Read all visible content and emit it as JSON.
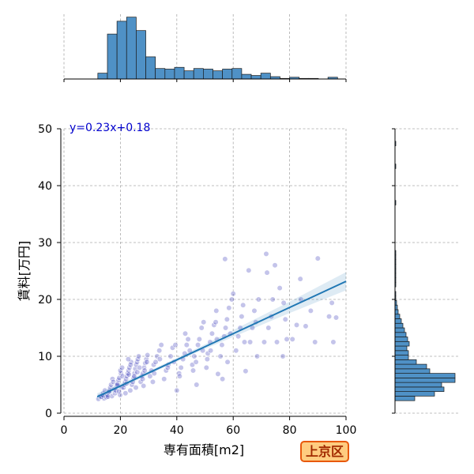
{
  "badge": {
    "label": "上京区",
    "bg_color": "#ffcc80",
    "border_color": "#e8590c",
    "text_color": "#a12a00"
  },
  "chart_data": {
    "type": "scatter",
    "title": "",
    "xlabel": "専有面積[m2]",
    "ylabel": "賃料[万円]",
    "xlim": [
      0,
      100
    ],
    "ylim": [
      0,
      50
    ],
    "xticks": [
      0,
      20,
      40,
      60,
      80,
      100
    ],
    "yticks": [
      0,
      10,
      20,
      30,
      40,
      50
    ],
    "grid": true,
    "point_color": "#2b2bb3",
    "points": [
      [
        12.2,
        2.5
      ],
      [
        12.8,
        3.0
      ],
      [
        13.1,
        2.8
      ],
      [
        13.5,
        3.2
      ],
      [
        13.9,
        3.5
      ],
      [
        14.2,
        2.6
      ],
      [
        14.5,
        4.0
      ],
      [
        14.8,
        3.3
      ],
      [
        13.3,
        2.9
      ],
      [
        14.0,
        3.1
      ],
      [
        15.1,
        2.8
      ],
      [
        15.4,
        3.2
      ],
      [
        15.8,
        3.6
      ],
      [
        16.1,
        4.0
      ],
      [
        16.4,
        4.5
      ],
      [
        16.7,
        5.0
      ],
      [
        17.0,
        3.0
      ],
      [
        17.2,
        6.0
      ],
      [
        17.5,
        5.5
      ],
      [
        17.8,
        4.2
      ],
      [
        16.0,
        3.8
      ],
      [
        15.6,
        2.9
      ],
      [
        18.1,
        3.5
      ],
      [
        18.4,
        4.0
      ],
      [
        18.7,
        4.8
      ],
      [
        19.0,
        5.2
      ],
      [
        19.3,
        5.8
      ],
      [
        19.6,
        6.2
      ],
      [
        19.9,
        3.2
      ],
      [
        20.2,
        7.0
      ],
      [
        20.5,
        4.5
      ],
      [
        20.8,
        6.5
      ],
      [
        18.9,
        5.0
      ],
      [
        19.5,
        3.8
      ],
      [
        20.0,
        7.5
      ],
      [
        20.6,
        8.0
      ],
      [
        21.1,
        4.5
      ],
      [
        21.4,
        5.0
      ],
      [
        21.7,
        5.5
      ],
      [
        22.0,
        6.0
      ],
      [
        22.3,
        6.5
      ],
      [
        22.6,
        7.0
      ],
      [
        22.9,
        7.5
      ],
      [
        23.2,
        8.0
      ],
      [
        23.5,
        4.0
      ],
      [
        21.8,
        3.5
      ],
      [
        23.8,
        9.0
      ],
      [
        22.2,
        5.2
      ],
      [
        23.0,
        6.8
      ],
      [
        23.6,
        8.5
      ],
      [
        22.8,
        9.5
      ],
      [
        24.1,
        5.0
      ],
      [
        24.4,
        5.5
      ],
      [
        24.7,
        6.2
      ],
      [
        25.0,
        7.0
      ],
      [
        25.3,
        7.8
      ],
      [
        25.6,
        8.5
      ],
      [
        25.9,
        9.0
      ],
      [
        26.2,
        9.5
      ],
      [
        26.5,
        10.0
      ],
      [
        24.9,
        6.5
      ],
      [
        25.5,
        4.5
      ],
      [
        26.0,
        7.2
      ],
      [
        26.8,
        8.0
      ],
      [
        27.2,
        5.5
      ],
      [
        27.6,
        6.5
      ],
      [
        28.0,
        7.0
      ],
      [
        28.4,
        8.0
      ],
      [
        28.8,
        8.8
      ],
      [
        29.2,
        9.5
      ],
      [
        29.6,
        10.2
      ],
      [
        27.9,
        6.0
      ],
      [
        28.6,
        7.5
      ],
      [
        29.4,
        9.0
      ],
      [
        28.2,
        4.8
      ],
      [
        30.5,
        6.5
      ],
      [
        31.0,
        7.5
      ],
      [
        31.8,
        8.5
      ],
      [
        32.5,
        9.0
      ],
      [
        33.0,
        10.0
      ],
      [
        33.8,
        11.0
      ],
      [
        34.5,
        12.0
      ],
      [
        32.0,
        7.0
      ],
      [
        34.0,
        9.5
      ],
      [
        31.5,
        5.5
      ],
      [
        35.5,
        6.0
      ],
      [
        36.2,
        7.5
      ],
      [
        37.0,
        8.5
      ],
      [
        37.8,
        10.0
      ],
      [
        38.5,
        11.5
      ],
      [
        39.0,
        9.0
      ],
      [
        39.5,
        12.0
      ],
      [
        40.0,
        4.0
      ],
      [
        36.8,
        8.0
      ],
      [
        40.8,
        7.0
      ],
      [
        41.5,
        8.0
      ],
      [
        42.2,
        9.5
      ],
      [
        42.8,
        10.5
      ],
      [
        43.5,
        12.0
      ],
      [
        44.0,
        13.0
      ],
      [
        44.6,
        11.0
      ],
      [
        41.0,
        6.5
      ],
      [
        43.0,
        14.0
      ],
      [
        47.0,
        5.0
      ],
      [
        45.5,
        8.5
      ],
      [
        46.2,
        10.0
      ],
      [
        47.5,
        12.0
      ],
      [
        48.0,
        13.0
      ],
      [
        48.8,
        15.0
      ],
      [
        49.2,
        11.0
      ],
      [
        46.8,
        9.0
      ],
      [
        49.5,
        16.0
      ],
      [
        45.8,
        7.5
      ],
      [
        50.5,
        8.0
      ],
      [
        51.0,
        10.5
      ],
      [
        51.8,
        12.5
      ],
      [
        52.5,
        14.0
      ],
      [
        53.2,
        15.5
      ],
      [
        53.8,
        16.0
      ],
      [
        54.2,
        13.0
      ],
      [
        52.0,
        11.0
      ],
      [
        50.8,
        9.5
      ],
      [
        54.6,
        6.9
      ],
      [
        54.0,
        18.0
      ],
      [
        55.5,
        10.0
      ],
      [
        56.0,
        12.0
      ],
      [
        56.8,
        13.5
      ],
      [
        57.3,
        15.0
      ],
      [
        57.8,
        16.5
      ],
      [
        58.5,
        18.5
      ],
      [
        59.0,
        14.0
      ],
      [
        58.0,
        9.0
      ],
      [
        59.5,
        20.0
      ],
      [
        57.1,
        27.1
      ],
      [
        56.2,
        6.0
      ],
      [
        64.4,
        7.4
      ],
      [
        61.0,
        11.0
      ],
      [
        61.8,
        13.5
      ],
      [
        62.5,
        15.0
      ],
      [
        63.0,
        17.0
      ],
      [
        63.5,
        19.0
      ],
      [
        60.0,
        21.0
      ],
      [
        64.0,
        12.5
      ],
      [
        66.0,
        12.5
      ],
      [
        66.8,
        15.0
      ],
      [
        68.0,
        16.0
      ],
      [
        67.5,
        18.0
      ],
      [
        69.0,
        20.0
      ],
      [
        65.5,
        25.1
      ],
      [
        68.5,
        10.0
      ],
      [
        71.0,
        12.5
      ],
      [
        72.5,
        15.0
      ],
      [
        72.0,
        24.7
      ],
      [
        71.7,
        28.0
      ],
      [
        74.8,
        26.0
      ],
      [
        73.5,
        17.0
      ],
      [
        74.0,
        20.0
      ],
      [
        77.6,
        10.0
      ],
      [
        75.5,
        12.5
      ],
      [
        79.0,
        13.0
      ],
      [
        77.9,
        19.4
      ],
      [
        76.5,
        22.0
      ],
      [
        78.5,
        16.5
      ],
      [
        81.0,
        13.0
      ],
      [
        82.5,
        15.5
      ],
      [
        83.8,
        23.6
      ],
      [
        84.0,
        20.0
      ],
      [
        85.7,
        15.3
      ],
      [
        89.0,
        12.5
      ],
      [
        87.5,
        18.0
      ],
      [
        90.0,
        27.2
      ],
      [
        95.5,
        12.5
      ],
      [
        94.0,
        17.0
      ],
      [
        95.0,
        19.4
      ],
      [
        96.5,
        16.8
      ]
    ],
    "regression": {
      "label": "y=0.23x+0.18",
      "slope": 0.23,
      "intercept": 0.18,
      "x_range": [
        11.8,
        100
      ],
      "color": "#1f77b4",
      "label_color": "#0000cd",
      "ci": [
        [
          11.8,
          2.3,
          3.5
        ],
        [
          20,
          4.4,
          5.2
        ],
        [
          30,
          6.8,
          7.4
        ],
        [
          40,
          9.1,
          9.7
        ],
        [
          50,
          11.3,
          12.1
        ],
        [
          60,
          13.4,
          14.6
        ],
        [
          70,
          15.5,
          17.1
        ],
        [
          80,
          17.6,
          19.6
        ],
        [
          90,
          19.6,
          22.2
        ],
        [
          100,
          21.6,
          24.8
        ]
      ]
    },
    "top_histogram": {
      "bin_edges": [
        12.0,
        15.4,
        18.8,
        22.2,
        25.6,
        29.0,
        32.4,
        35.8,
        39.2,
        42.6,
        46.0,
        49.4,
        52.8,
        56.2,
        59.6,
        63.0,
        66.4,
        69.8,
        73.2,
        76.6,
        80.0,
        83.4,
        86.8,
        90.2,
        93.6,
        97.0
      ],
      "counts": [
        10,
        77,
        99,
        106,
        83,
        38,
        18,
        17,
        20,
        14,
        18,
        17,
        14,
        17,
        18,
        8,
        6,
        10,
        4,
        1,
        3,
        1,
        1,
        0,
        3
      ],
      "count_max": 111,
      "color": "#4f91c6"
    },
    "right_histogram": {
      "bin_start": 2.2,
      "bin_width": 0.8,
      "counts": [
        25,
        50,
        62,
        59,
        76,
        76,
        44,
        40,
        27,
        17,
        17,
        15,
        18,
        16,
        14,
        12,
        10,
        8,
        6,
        4,
        3,
        2,
        1,
        1,
        0,
        1,
        1,
        1,
        1,
        1,
        1,
        1,
        1,
        0,
        0,
        0,
        0,
        0,
        0,
        0,
        0,
        0,
        0,
        1,
        0,
        0,
        0,
        0,
        0,
        0,
        0,
        1,
        0,
        0,
        0,
        0,
        1
      ],
      "count_max": 80,
      "color": "#4f91c6"
    }
  }
}
